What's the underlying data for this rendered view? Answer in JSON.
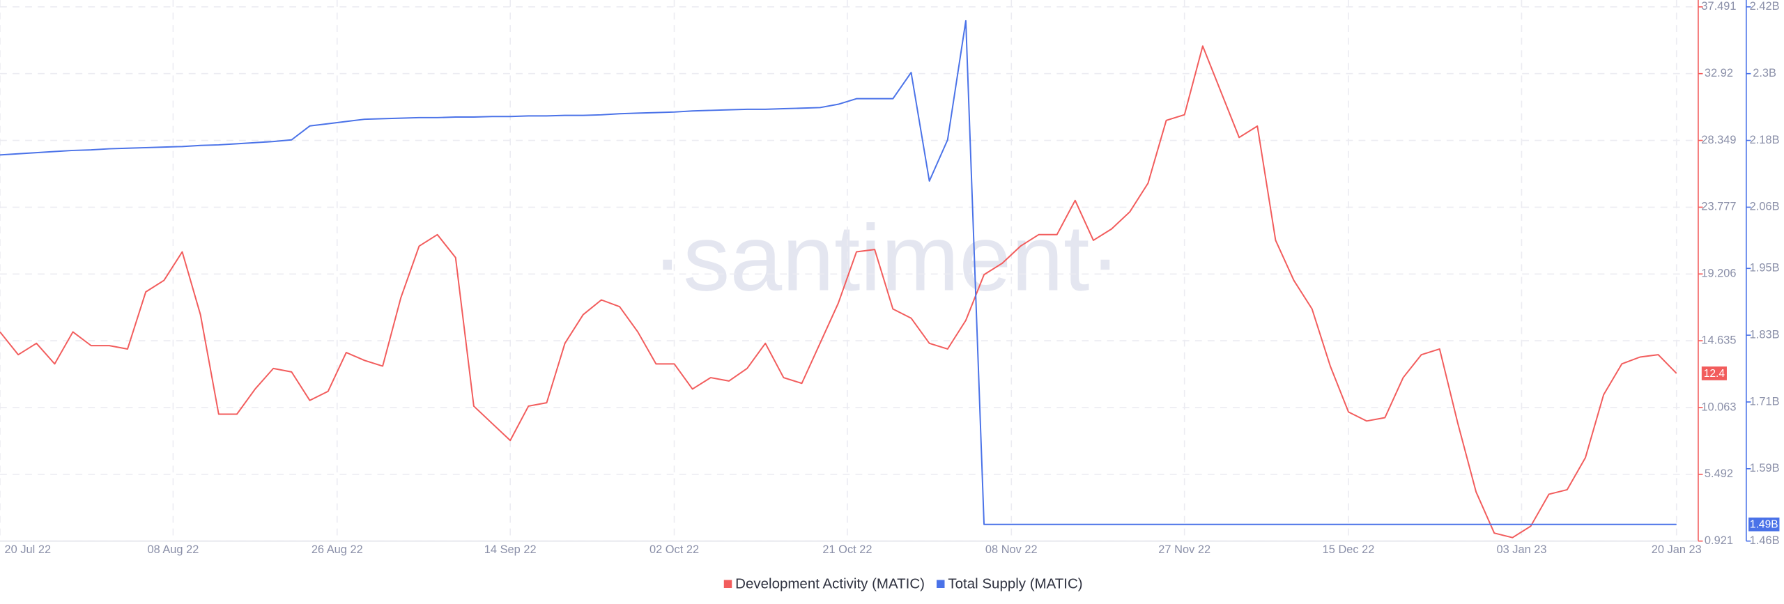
{
  "chart_data": {
    "type": "line",
    "watermark": "·santiment·",
    "x": [
      "2022-07-20",
      "2022-07-22",
      "2022-07-24",
      "2022-07-26",
      "2022-07-28",
      "2022-07-30",
      "2022-08-01",
      "2022-08-03",
      "2022-08-05",
      "2022-08-07",
      "2022-08-09",
      "2022-08-11",
      "2022-08-13",
      "2022-08-15",
      "2022-08-17",
      "2022-08-19",
      "2022-08-21",
      "2022-08-23",
      "2022-08-25",
      "2022-08-27",
      "2022-08-29",
      "2022-08-31",
      "2022-09-02",
      "2022-09-04",
      "2022-09-06",
      "2022-09-08",
      "2022-09-10",
      "2022-09-12",
      "2022-09-14",
      "2022-09-16",
      "2022-09-18",
      "2022-09-20",
      "2022-09-22",
      "2022-09-24",
      "2022-09-26",
      "2022-09-28",
      "2022-09-30",
      "2022-10-02",
      "2022-10-04",
      "2022-10-06",
      "2022-10-08",
      "2022-10-10",
      "2022-10-12",
      "2022-10-14",
      "2022-10-16",
      "2022-10-18",
      "2022-10-20",
      "2022-10-22",
      "2022-10-24",
      "2022-10-26",
      "2022-10-28",
      "2022-10-30",
      "2022-11-01",
      "2022-11-03",
      "2022-11-05",
      "2022-11-07",
      "2022-11-09",
      "2022-11-11",
      "2022-11-13",
      "2022-11-15",
      "2022-11-17",
      "2022-11-19",
      "2022-11-21",
      "2022-11-23",
      "2022-11-25",
      "2022-11-27",
      "2022-11-29",
      "2022-12-01",
      "2022-12-03",
      "2022-12-05",
      "2022-12-07",
      "2022-12-09",
      "2022-12-11",
      "2022-12-13",
      "2022-12-15",
      "2022-12-17",
      "2022-12-19",
      "2022-12-21",
      "2022-12-23",
      "2022-12-25",
      "2022-12-27",
      "2022-12-29",
      "2022-12-31",
      "2023-01-02",
      "2023-01-04",
      "2023-01-06",
      "2023-01-08",
      "2023-01-10",
      "2023-01-12",
      "2023-01-14",
      "2023-01-16",
      "2023-01-18",
      "2023-01-20"
    ],
    "xlim": [
      "2022-07-20",
      "2023-01-20"
    ],
    "xticks": [
      {
        "value": "2022-07-20",
        "label": "20 Jul 22"
      },
      {
        "value": "2022-08-08",
        "label": "08 Aug 22"
      },
      {
        "value": "2022-08-26",
        "label": "26 Aug 22"
      },
      {
        "value": "2022-09-14",
        "label": "14 Sep 22"
      },
      {
        "value": "2022-10-02",
        "label": "02 Oct 22"
      },
      {
        "value": "2022-10-21",
        "label": "21 Oct 22"
      },
      {
        "value": "2022-11-08",
        "label": "08 Nov 22"
      },
      {
        "value": "2022-11-27",
        "label": "27 Nov 22"
      },
      {
        "value": "2022-12-15",
        "label": "15 Dec 22"
      },
      {
        "value": "2023-01-03",
        "label": "03 Jan 23"
      },
      {
        "value": "2023-01-20",
        "label": "20 Jan 23"
      }
    ],
    "ylim": [
      0.921,
      37.491
    ],
    "yticks": [
      0.921,
      5.492,
      10.063,
      14.635,
      19.206,
      23.777,
      28.349,
      32.92,
      37.491
    ],
    "y2lim": [
      1.46,
      2.42
    ],
    "y2ticks": [
      {
        "value": 1.46,
        "label": "1.46B"
      },
      {
        "value": 1.59,
        "label": "1.59B"
      },
      {
        "value": 1.71,
        "label": "1.71B"
      },
      {
        "value": 1.83,
        "label": "1.83B"
      },
      {
        "value": 1.95,
        "label": "1.95B"
      },
      {
        "value": 2.06,
        "label": "2.06B"
      },
      {
        "value": 2.18,
        "label": "2.18B"
      },
      {
        "value": 2.3,
        "label": "2.3B"
      },
      {
        "value": 2.42,
        "label": "2.42B"
      }
    ],
    "grid": true,
    "legend": "bottom",
    "series": [
      {
        "name": "Development Activity (MATIC)",
        "color": "#f25c5c",
        "axis": "y",
        "last_value_label": "12.4",
        "values": [
          15.24,
          13.68,
          14.46,
          13.05,
          15.24,
          14.3,
          14.3,
          14.07,
          17.98,
          18.77,
          20.72,
          16.42,
          9.61,
          9.61,
          11.33,
          12.74,
          12.5,
          10.55,
          11.17,
          13.83,
          13.29,
          12.9,
          17.59,
          21.11,
          21.9,
          20.33,
          10.16,
          8.98,
          7.81,
          10.16,
          10.39,
          14.46,
          16.42,
          17.43,
          16.97,
          15.24,
          13.05,
          13.05,
          11.33,
          12.11,
          11.88,
          12.74,
          14.46,
          12.11,
          11.72,
          14.46,
          17.2,
          20.72,
          20.88,
          16.81,
          16.18,
          14.46,
          14.07,
          16.03,
          19.16,
          19.94,
          21.11,
          21.9,
          21.9,
          24.24,
          21.51,
          22.29,
          23.46,
          25.42,
          29.72,
          30.11,
          34.81,
          31.68,
          28.55,
          29.33,
          21.51,
          18.77,
          16.81,
          12.9,
          9.76,
          9.14,
          9.37,
          12.11,
          13.68,
          14.07,
          8.98,
          4.29,
          1.47,
          1.16,
          1.94,
          4.13,
          4.44,
          6.63,
          10.94,
          13.05,
          13.52,
          13.68,
          12.4
        ]
      },
      {
        "name": "Total Supply (MATIC)",
        "color": "#4a72e8",
        "axis": "y2",
        "last_value_label": "1.49B",
        "values": [
          2.154,
          2.156,
          2.158,
          2.16,
          2.162,
          2.163,
          2.165,
          2.166,
          2.167,
          2.168,
          2.169,
          2.171,
          2.172,
          2.174,
          2.176,
          2.178,
          2.181,
          2.206,
          2.21,
          2.214,
          2.218,
          2.219,
          2.22,
          2.221,
          2.221,
          2.222,
          2.222,
          2.223,
          2.223,
          2.224,
          2.224,
          2.225,
          2.225,
          2.226,
          2.228,
          2.229,
          2.23,
          2.231,
          2.233,
          2.234,
          2.235,
          2.236,
          2.236,
          2.237,
          2.238,
          2.239,
          2.245,
          2.255,
          2.255,
          2.255,
          2.302,
          2.107,
          2.181,
          2.395,
          1.49,
          1.49,
          1.49,
          1.49,
          1.49,
          1.49,
          1.49,
          1.49,
          1.49,
          1.49,
          1.49,
          1.49,
          1.49,
          1.49,
          1.49,
          1.49,
          1.49,
          1.49,
          1.49,
          1.49,
          1.49,
          1.49,
          1.49,
          1.49,
          1.49,
          1.49,
          1.49,
          1.49,
          1.49,
          1.49,
          1.49,
          1.49,
          1.49,
          1.49,
          1.49,
          1.49,
          1.49,
          1.49,
          1.49
        ]
      }
    ]
  }
}
